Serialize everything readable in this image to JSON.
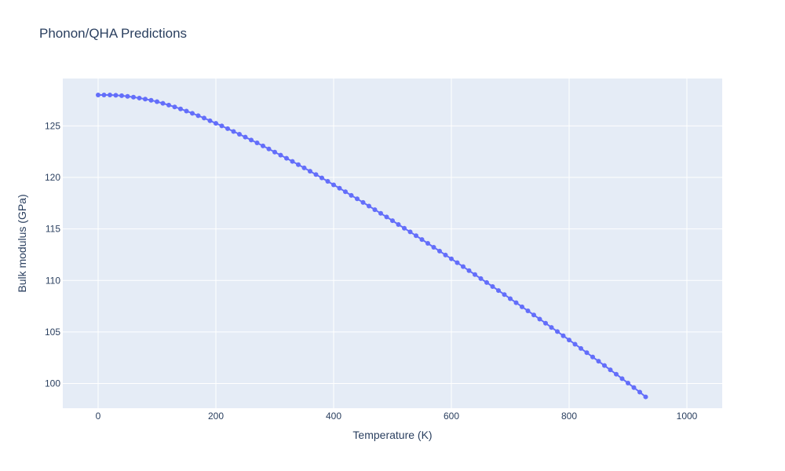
{
  "chart_data": {
    "type": "scatter",
    "mode": "lines+markers",
    "title": "Phonon/QHA Predictions",
    "xlabel": "Temperature (K)",
    "ylabel": "Bulk modulus (GPa)",
    "xlim": [
      -60,
      1060
    ],
    "ylim": [
      97.6,
      129.6
    ],
    "xticks": [
      0,
      200,
      400,
      600,
      800,
      1000
    ],
    "yticks": [
      100,
      105,
      110,
      115,
      120,
      125
    ],
    "grid": true,
    "colors": {
      "series": "#636efa",
      "plot_bg": "#e5ecf6",
      "grid": "#ffffff",
      "text": "#2a3f5f"
    },
    "series": [
      {
        "x_start": 0,
        "x_step": 10,
        "values": [
          128.0,
          128.0,
          128.0,
          127.97,
          127.93,
          127.87,
          127.79,
          127.7,
          127.6,
          127.49,
          127.35,
          127.19,
          127.02,
          126.84,
          126.65,
          126.44,
          126.22,
          125.99,
          125.76,
          125.5,
          125.25,
          125.0,
          124.73,
          124.46,
          124.19,
          123.91,
          123.63,
          123.35,
          123.06,
          122.76,
          122.46,
          122.16,
          121.86,
          121.55,
          121.24,
          120.92,
          120.6,
          120.28,
          119.95,
          119.62,
          119.28,
          118.95,
          118.61,
          118.26,
          117.92,
          117.57,
          117.22,
          116.87,
          116.51,
          116.16,
          115.8,
          115.43,
          115.07,
          114.71,
          114.34,
          113.97,
          113.6,
          113.22,
          112.85,
          112.47,
          112.1,
          111.72,
          111.34,
          110.95,
          110.57,
          110.18,
          109.8,
          109.41,
          109.02,
          108.63,
          108.23,
          107.84,
          107.44,
          107.05,
          106.65,
          106.25,
          105.85,
          105.44,
          105.04,
          104.63,
          104.22,
          103.81,
          103.4,
          102.99,
          102.57,
          102.16,
          101.74,
          101.32,
          100.9,
          100.47,
          100.04,
          99.6,
          99.16,
          98.7
        ]
      }
    ]
  }
}
